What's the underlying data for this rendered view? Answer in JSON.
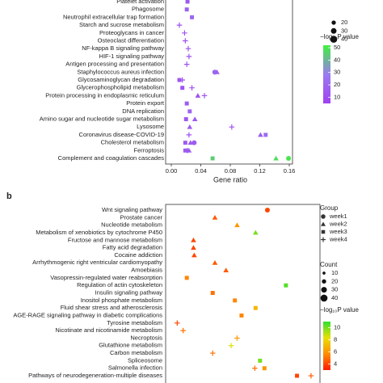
{
  "chart_data": [
    {
      "type": "dotplot",
      "categories": [
        "Platelet activation",
        "Phagosome",
        "Neutrophil extracellular trap formation",
        "Starch and sucrose metabolism",
        "Proteoglycans in cancer",
        "Osteoclast differentiation",
        "NF-kappa B signaling pathway",
        "HIF-1 signaling pathway",
        "Antigen processing and presentation",
        "Staphylococcus aureus infection",
        "Glycosaminoglycan degradation",
        "Glycerophospholipid metabolism",
        "Protein processing in endoplasmic reticulum",
        "Protein export",
        "DNA replication",
        "Amino sugar and nucleotide sugar metabolism",
        "Lysosome",
        "Coronavirus disease-COVID-19",
        "Cholesterol metabolism",
        "Ferroptosis",
        "Complement and coagulation cascades"
      ],
      "xlim": [
        0,
        0.16
      ],
      "xticks": [
        {
          "value": 0,
          "label": "0.00"
        },
        {
          "value": 0.04,
          "label": "0.04"
        },
        {
          "value": 0.08,
          "label": "0.08"
        },
        {
          "value": 0.12,
          "label": "0.12"
        },
        {
          "value": 0.16,
          "label": "0.16"
        }
      ],
      "x_label": "Gene ratio",
      "series": [
        {
          "shape": "circle",
          "values": [
            null,
            null,
            null,
            null,
            null,
            null,
            null,
            null,
            null,
            0.059,
            null,
            null,
            null,
            null,
            null,
            null,
            null,
            null,
            0.031,
            null,
            0.159
          ],
          "p_values": [
            null,
            null,
            null,
            null,
            null,
            null,
            null,
            null,
            null,
            20,
            null,
            null,
            null,
            null,
            null,
            null,
            null,
            null,
            16,
            null,
            50
          ]
        },
        {
          "shape": "triangle",
          "values": [
            null,
            null,
            null,
            null,
            null,
            null,
            null,
            null,
            null,
            0.062,
            null,
            null,
            0.036,
            null,
            null,
            0.032,
            0.025,
            0.121,
            0.026,
            0.024,
            0.142
          ],
          "p_values": [
            null,
            null,
            null,
            null,
            null,
            null,
            null,
            null,
            null,
            18,
            null,
            null,
            12,
            null,
            null,
            15,
            16,
            16,
            16,
            15,
            48
          ]
        },
        {
          "shape": "square",
          "values": [
            0.022,
            0.021,
            0.028,
            null,
            null,
            null,
            null,
            null,
            null,
            null,
            0.011,
            0.015,
            null,
            0.021,
            0.025,
            0.02,
            null,
            0.128,
            0.019,
            0.019,
            0.056
          ],
          "p_values": [
            15,
            18,
            20,
            null,
            null,
            null,
            null,
            null,
            null,
            null,
            14,
            13,
            null,
            16,
            20,
            14,
            null,
            22,
            16,
            16,
            45
          ]
        },
        {
          "shape": "plus",
          "values": [
            null,
            null,
            null,
            0.011,
            0.018,
            0.019,
            0.023,
            0.024,
            0.021,
            null,
            0.015,
            0.028,
            0.045,
            null,
            null,
            null,
            0.082,
            0.024,
            null,
            0.022,
            null
          ],
          "p_values": [
            null,
            null,
            null,
            12,
            12,
            12,
            13,
            13,
            12,
            null,
            12,
            12,
            14,
            null,
            null,
            null,
            12,
            12,
            null,
            14,
            null
          ]
        }
      ],
      "size_legend": [
        20,
        30,
        40
      ],
      "color_title": "−log₁₀P value",
      "clim": [
        5,
        52
      ],
      "cticks": [
        10,
        20,
        30,
        40,
        50
      ],
      "colormap": [
        "#a040f0",
        "#9a7cf0",
        "#40f040"
      ]
    },
    {
      "type": "dotplot",
      "panel_label": "b",
      "categories": [
        "Wnt signaling pathway",
        "Prostate cancer",
        "Nucleotide metabolism",
        "Metabolism of xenobiotics by cytochrome P450",
        "Fructose and mannose metabolism",
        "Fatty acid degradation",
        "Cocaine addiction",
        "Arrhythmogenic right ventricular cardiomyopathy",
        "Amoebiasis",
        "Vasopressin-regulated water reabsorption",
        "Regulation of actin cytoskeleton",
        "Insulin signaling pathway",
        "Inositol phosphate metabolism",
        "Fluid shear stress and atherosclerosis",
        "AGE-RAGE signaling pathway in diabetic complications",
        "Tyrosine metabolism",
        "Nicotinate and nicotinamide metabolism",
        "Necroptosis",
        "Glutathione metabolism",
        "Carbon metabolism",
        "Spliceosome",
        "Salmonella infection",
        "Pathways of neurodegeneration-multiple diseases"
      ],
      "xlim": [
        0,
        0.2
      ],
      "series": [
        {
          "name": "week1",
          "shape": "circle",
          "values": [
            0.13,
            null,
            null,
            null,
            null,
            null,
            null,
            null,
            null,
            null,
            null,
            null,
            null,
            null,
            null,
            null,
            null,
            null,
            null,
            null,
            null,
            null,
            null
          ],
          "p_values": [
            4,
            null,
            null,
            null,
            null,
            null,
            null,
            null,
            null,
            null,
            null,
            null,
            null,
            null,
            null,
            null,
            null,
            null,
            null,
            null,
            null,
            null,
            null
          ]
        },
        {
          "name": "week2",
          "shape": "triangle",
          "values": [
            null,
            0.059,
            0.089,
            0.114,
            0.03,
            0.03,
            0.031,
            0.059,
            0.074,
            null,
            null,
            null,
            null,
            null,
            null,
            null,
            null,
            null,
            null,
            null,
            null,
            null,
            null
          ],
          "p_values": [
            null,
            4.5,
            6,
            10,
            4,
            4,
            4,
            4.5,
            4.5,
            null,
            null,
            null,
            null,
            null,
            null,
            null,
            null,
            null,
            null,
            null,
            null,
            null,
            null
          ]
        },
        {
          "name": "week3",
          "shape": "square",
          "values": [
            null,
            null,
            null,
            null,
            null,
            null,
            null,
            null,
            null,
            0.021,
            0.155,
            0.056,
            0.086,
            0.114,
            0.095,
            null,
            null,
            null,
            null,
            null,
            0.12,
            0.126,
            0.17
          ],
          "p_values": [
            null,
            null,
            null,
            null,
            null,
            null,
            null,
            null,
            null,
            5.5,
            10.5,
            5,
            5.5,
            7,
            5.5,
            null,
            null,
            null,
            null,
            null,
            10,
            6,
            4
          ]
        },
        {
          "name": "week4",
          "shape": "plus",
          "values": [
            null,
            null,
            null,
            null,
            null,
            null,
            null,
            null,
            null,
            null,
            null,
            null,
            null,
            null,
            null,
            0.008,
            0.016,
            0.089,
            0.081,
            0.056,
            null,
            0.113,
            0.189
          ],
          "p_values": [
            null,
            null,
            null,
            null,
            null,
            null,
            null,
            null,
            null,
            null,
            null,
            null,
            null,
            null,
            null,
            4,
            5,
            6,
            8.5,
            5,
            null,
            5,
            4.5
          ]
        }
      ],
      "group_title": "Group",
      "size_title": "Count",
      "size_legend": [
        10,
        20,
        30,
        40
      ],
      "color_title": "−log₁₀P value",
      "clim": [
        3,
        11
      ],
      "cticks": [
        4,
        6,
        8,
        10
      ],
      "colormap": [
        "#ff1a00",
        "#ff8c00",
        "#e8e000",
        "#30e030"
      ]
    }
  ]
}
